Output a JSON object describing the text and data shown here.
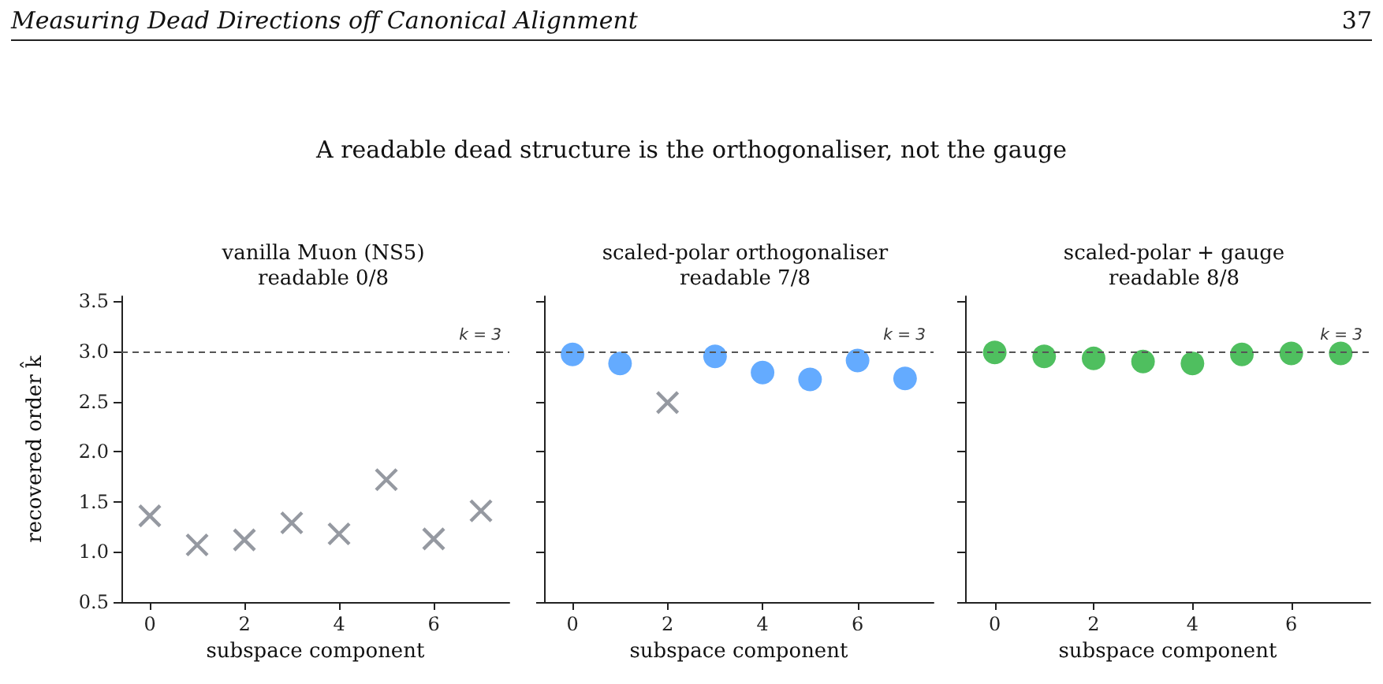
{
  "chart_data": [
    {
      "type": "scatter",
      "title": "vanilla Muon (NS5)\nreadable 0/8",
      "xlabel": "subspace component",
      "ylabel": "recovered order k̂",
      "annotations": [
        "Measuring Dead Directions off Canonical Alignment",
        "37",
        "A readable dead structure is the orthogonaliser, not the gauge"
      ],
      "x": [
        0,
        1,
        2,
        3,
        4,
        5,
        6,
        7
      ],
      "series": [
        {
          "color": "#7a7f89",
          "marker": "cross",
          "values": [
            1.36,
            1.07,
            1.12,
            1.29,
            1.18,
            1.72,
            1.13,
            1.41
          ]
        }
      ],
      "xlim": [
        -0.6,
        7.6
      ],
      "xticks": [
        0,
        2,
        4,
        6
      ],
      "ylim": [
        0.5,
        3.55
      ],
      "yticks": [
        0.5,
        {
          "value": 1,
          "label": "1.0"
        },
        1.5,
        {
          "value": 2,
          "label": "2.0"
        },
        2.5,
        {
          "value": 3,
          "label": "3.0"
        },
        3.5
      ],
      "ref_lines": [
        {
          "axis": "y",
          "value": 3,
          "label": "k = 3",
          "color": "#555555",
          "line_style": "dashed"
        }
      ]
    },
    {
      "type": "scatter",
      "title": "scaled-polar orthogonaliser\nreadable 7/8",
      "xlabel": "subspace component",
      "x": [
        0,
        1,
        2,
        3,
        4,
        5,
        6,
        7
      ],
      "series": [
        {
          "color": "#64abff",
          "marker": "circle",
          "values": [
            2.97,
            2.88,
            null,
            2.95,
            2.79,
            2.72,
            2.91,
            2.73
          ]
        },
        {
          "color": "#7a7f89",
          "marker": "cross",
          "values": [
            null,
            null,
            2.49,
            null,
            null,
            null,
            null,
            null
          ]
        }
      ],
      "xlim": [
        -0.6,
        7.6
      ],
      "xticks": [
        0,
        2,
        4,
        6
      ],
      "ylim": [
        0.5,
        3.55
      ],
      "yticks": [
        0.5,
        1.0,
        1.5,
        2.0,
        2.5,
        3.0,
        3.5
      ],
      "tick_labels": "x",
      "ref_lines": [
        {
          "axis": "y",
          "value": 3,
          "label": "k = 3",
          "color": "#555555",
          "line_style": "dashed"
        }
      ]
    },
    {
      "type": "scatter",
      "title": "scaled-polar + gauge\nreadable 8/8",
      "xlabel": "subspace component",
      "x": [
        0,
        1,
        2,
        3,
        4,
        5,
        6,
        7
      ],
      "series": [
        {
          "color": "#4fbf5f",
          "marker": "circle",
          "values": [
            2.99,
            2.95,
            2.93,
            2.9,
            2.88,
            2.97,
            2.98,
            2.98
          ]
        }
      ],
      "xlim": [
        -0.6,
        7.6
      ],
      "xticks": [
        0,
        2,
        4,
        6
      ],
      "ylim": [
        0.5,
        3.55
      ],
      "yticks": [
        0.5,
        1.0,
        1.5,
        2.0,
        2.5,
        3.0,
        3.5
      ],
      "tick_labels": "x",
      "ref_lines": [
        {
          "axis": "y",
          "value": 3,
          "label": "k = 3",
          "color": "#555555",
          "line_style": "dashed"
        }
      ]
    }
  ]
}
